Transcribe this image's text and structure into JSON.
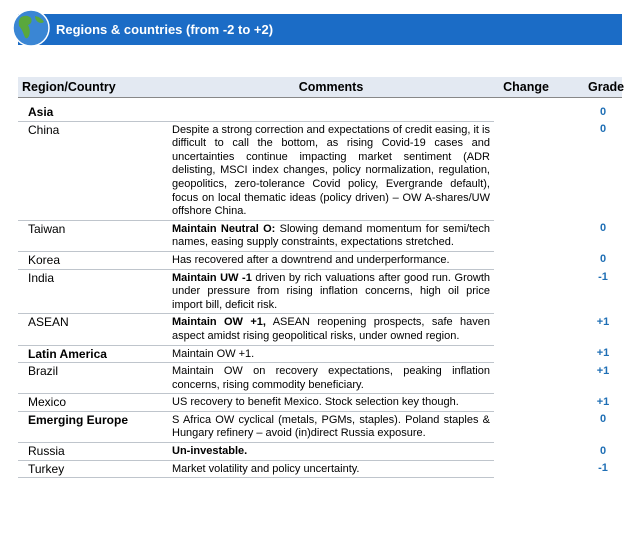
{
  "header": {
    "title": "Regions & countries (from -2 to +2)"
  },
  "table": {
    "columns": [
      "Region/Country",
      "Comments",
      "Change",
      "Grade"
    ],
    "rows": [
      {
        "region": "Asia",
        "group": true,
        "grade": "0"
      },
      {
        "region": "China",
        "comment": "Despite a strong correction and expectations of credit easing, it is difficult to call the bottom, as rising Covid-19 cases and uncertainties continue impacting market sentiment (ADR delisting, MSCI index changes, policy normalization, regulation, geopolitics, zero-tolerance Covid policy, Evergrande default), focus on local thematic ideas (policy driven) – OW A-shares/UW offshore China.",
        "grade": "0"
      },
      {
        "region": "Taiwan",
        "comment_bold": "Maintain Neutral O:",
        "comment": "Slowing demand momentum for semi/tech names, easing supply constraints, expectations stretched.",
        "grade": "0"
      },
      {
        "region": "Korea",
        "comment": "Has recovered after a downtrend and underperformance.",
        "grade": "0"
      },
      {
        "region": "India",
        "comment_bold": "Maintain UW -1",
        "comment": "driven by rich valuations after good run. Growth under pressure from rising inflation concerns, high oil price import bill, deficit risk.",
        "grade": "-1"
      },
      {
        "region": "ASEAN",
        "comment_bold": "Maintain OW +1,",
        "comment": "ASEAN reopening prospects, safe haven aspect amidst rising geopolitical risks, under owned region.",
        "grade": "+1"
      },
      {
        "region": "Latin America",
        "group": true,
        "comment": "Maintain OW +1.",
        "grade": "+1"
      },
      {
        "region": "Brazil",
        "comment": "Maintain OW on recovery expectations, peaking inflation concerns, rising commodity beneficiary.",
        "grade": "+1"
      },
      {
        "region": "Mexico",
        "comment": "US recovery to benefit Mexico. Stock selection key though.",
        "grade": "+1"
      },
      {
        "region": "Emerging Europe",
        "group": true,
        "comment": "S Africa OW cyclical (metals, PGMs, staples). Poland staples & Hungary refinery – avoid (in)direct Russia exposure.",
        "grade": "0"
      },
      {
        "region": "Russia",
        "comment_bold": "Un-investable.",
        "grade": "0"
      },
      {
        "region": "Turkey",
        "comment": "Market volatility and policy uncertainty.",
        "grade": "-1"
      }
    ]
  }
}
